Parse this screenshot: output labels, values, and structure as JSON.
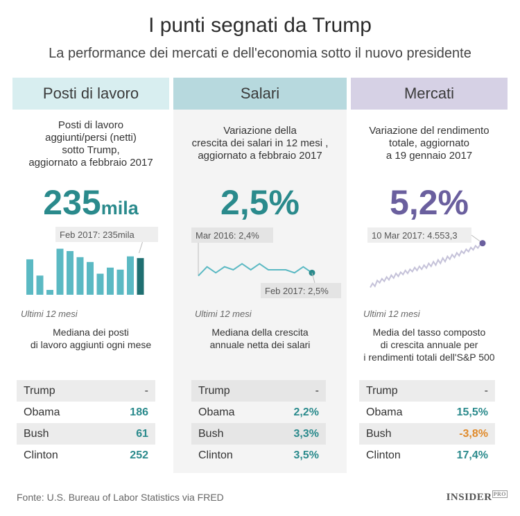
{
  "title": "I punti segnati da Trump",
  "subtitle": "La performance dei mercati e dell'economia sotto il nuovo presidente",
  "colors": {
    "teal": "#2a8a8c",
    "teal_dark": "#1f6f71",
    "teal_light": "#5bb9c3",
    "purple": "#6a5f9e",
    "purple_light": "#c5c2d9",
    "orange": "#e08a2a",
    "head_teal_bg": "#d8eef0",
    "head_salari_bg": "#b7d9de",
    "head_mercati_bg": "#d6d1e5"
  },
  "columns": [
    {
      "header": "Posti di lavoro",
      "description": [
        "Posti di lavoro",
        "aggiunti/persi (netti)",
        "sotto Trump,",
        "aggiornato a febbraio 2017"
      ],
      "big_value": "235",
      "big_unit": "mila",
      "period": "Ultimi 12 mesi",
      "metric": [
        "Mediana dei posti",
        "di lavoro aggiunti ogni mese"
      ],
      "table": [
        {
          "name": "Trump",
          "value": "-"
        },
        {
          "name": "Obama",
          "value": "186"
        },
        {
          "name": "Bush",
          "value": "61"
        },
        {
          "name": "Clinton",
          "value": "252"
        }
      ]
    },
    {
      "header": "Salari",
      "description": [
        "Variazione della",
        "crescita dei salari in 12 mesi ,",
        "aggiornato a febbraio 2017"
      ],
      "big_value": "2,5%",
      "period": "Ultimi 12 mesi",
      "metric": [
        "Mediana della crescita",
        "annuale netta dei salari"
      ],
      "table": [
        {
          "name": "Trump",
          "value": "-"
        },
        {
          "name": "Obama",
          "value": "2,2%"
        },
        {
          "name": "Bush",
          "value": "3,3%"
        },
        {
          "name": "Clinton",
          "value": "3,5%"
        }
      ]
    },
    {
      "header": "Mercati",
      "description": [
        "Variazione del rendimento",
        "totale, aggiornato",
        "a 19 gennaio 2017"
      ],
      "big_value": "5,2%",
      "period": "Ultimi 12 mesi",
      "metric": [
        "Media del tasso composto",
        "di crescita annuale per",
        "i rendimenti totali dell'S&P 500"
      ],
      "table": [
        {
          "name": "Trump",
          "value": "-"
        },
        {
          "name": "Obama",
          "value": "15,5%"
        },
        {
          "name": "Bush",
          "value": "-3,8%",
          "negative": true
        },
        {
          "name": "Clinton",
          "value": "17,4%"
        }
      ]
    }
  ],
  "chart_data": [
    {
      "type": "bar",
      "name": "Posti di lavoro",
      "annotation": "Feb 2017: 235mila",
      "values": [
        227,
        123,
        31,
        295,
        280,
        241,
        210,
        135,
        174,
        161,
        246,
        235
      ],
      "ylim": [
        0,
        320
      ]
    },
    {
      "type": "line",
      "name": "Salari",
      "annotation_start": "Mar 2016: 2,4%",
      "annotation_end": "Feb 2017: 2,5%",
      "values": [
        2.4,
        2.7,
        2.5,
        2.7,
        2.6,
        2.8,
        2.6,
        2.8,
        2.6,
        2.6,
        2.6,
        2.5,
        2.7,
        2.5
      ],
      "ylim": [
        2.0,
        3.2
      ]
    },
    {
      "type": "line",
      "name": "Mercati",
      "annotation_end": "10 Mar 2017: 4.553,3",
      "values": [
        3800,
        3870,
        3820,
        3920,
        3880,
        3950,
        3905,
        3980,
        3930,
        4010,
        3960,
        4040,
        3990,
        4060,
        4020,
        4090,
        4040,
        4110,
        4070,
        4140,
        4090,
        4160,
        4110,
        4180,
        4130,
        4210,
        4160,
        4240,
        4180,
        4270,
        4210,
        4300,
        4240,
        4330,
        4280,
        4360,
        4310,
        4390,
        4340,
        4420,
        4380,
        4450,
        4410,
        4480,
        4440,
        4510,
        4470,
        4530,
        4553.3
      ],
      "ylim": [
        3700,
        4620
      ]
    }
  ],
  "source": "Fonte: U.S. Bureau of Labor Statistics via FRED",
  "logo": {
    "main": "INSIDER",
    "sup": "PRO"
  }
}
